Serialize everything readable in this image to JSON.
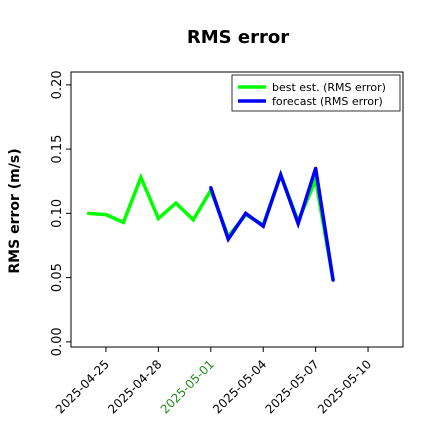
{
  "chart_data": {
    "type": "line",
    "title": "RMS error",
    "xlabel": "",
    "ylabel": "RMS error (m/s)",
    "ylim": [
      -0.004,
      0.21
    ],
    "xlim": [
      "2025-04-23",
      "2025-05-12"
    ],
    "yticks": [
      0.0,
      0.05,
      0.1,
      0.15,
      0.2
    ],
    "ytick_labels": [
      "0.00",
      "0.05",
      "0.10",
      "0.15",
      "0.20"
    ],
    "xticks": [
      {
        "date": "2025-04-25",
        "label": "2025-04-25",
        "color": "#000000"
      },
      {
        "date": "2025-04-28",
        "label": "2025-04-28",
        "color": "#000000"
      },
      {
        "date": "2025-05-01",
        "label": "2025-05-01",
        "color": "#228b22"
      },
      {
        "date": "2025-05-04",
        "label": "2025-05-04",
        "color": "#000000"
      },
      {
        "date": "2025-05-07",
        "label": "2025-05-07",
        "color": "#000000"
      },
      {
        "date": "2025-05-10",
        "label": "2025-05-10",
        "color": "#000000"
      }
    ],
    "grid": false,
    "legend_position": "top-right",
    "series": [
      {
        "name": "best est. (RMS error)",
        "color": "#00ff00",
        "x": [
          "2025-04-24",
          "2025-04-25",
          "2025-04-26",
          "2025-04-27",
          "2025-04-28",
          "2025-04-29",
          "2025-04-30",
          "2025-05-01",
          "2025-05-02",
          "2025-05-03",
          "2025-05-04",
          "2025-05-05",
          "2025-05-06",
          "2025-05-07",
          "2025-05-08"
        ],
        "values": [
          0.1,
          0.099,
          0.093,
          0.128,
          0.096,
          0.108,
          0.095,
          0.118,
          0.082,
          0.099,
          0.091,
          0.13,
          0.094,
          0.126,
          0.048
        ]
      },
      {
        "name": "forecast (RMS error)",
        "color": "#0000ff",
        "x": [
          "2025-05-01",
          "2025-05-02",
          "2025-05-03",
          "2025-05-04",
          "2025-05-05",
          "2025-05-06",
          "2025-05-07",
          "2025-05-08"
        ],
        "values": [
          0.12,
          0.08,
          0.1,
          0.09,
          0.13,
          0.092,
          0.135,
          0.048
        ]
      }
    ]
  }
}
